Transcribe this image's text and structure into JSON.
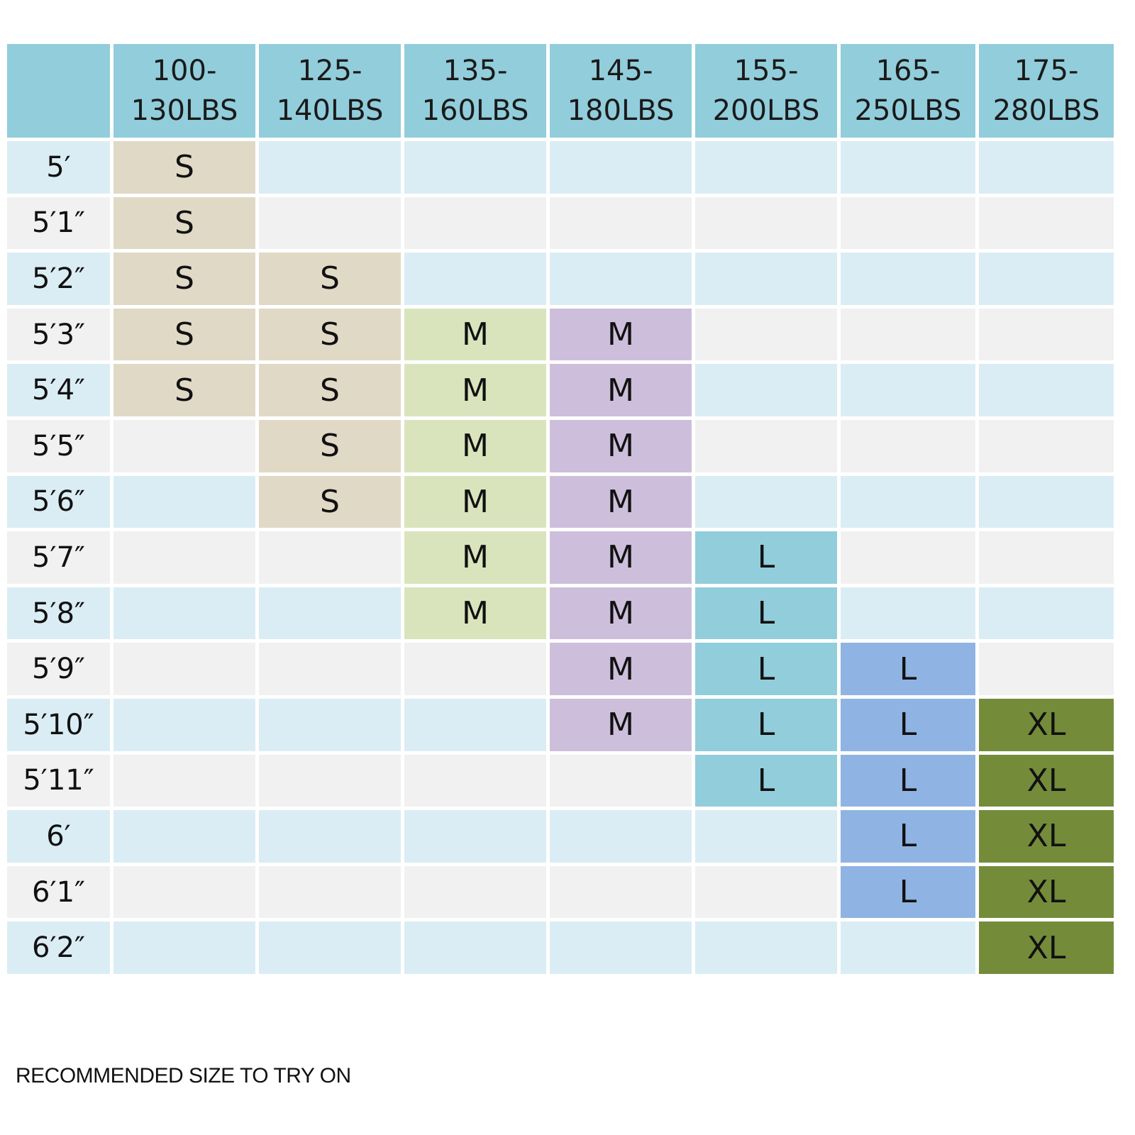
{
  "chart_data": {
    "type": "table",
    "columns": [
      "100-130LBS",
      "125-140LBS",
      "135-160LBS",
      "145-180LBS",
      "155-200LBS",
      "165-250LBS",
      "175-280LBS"
    ],
    "column_lines": [
      [
        "100-",
        "130LBS"
      ],
      [
        "125-",
        "140LBS"
      ],
      [
        "135-",
        "160LBS"
      ],
      [
        "145-",
        "180LBS"
      ],
      [
        "155-",
        "200LBS"
      ],
      [
        "165-",
        "250LBS"
      ],
      [
        "175-",
        "280LBS"
      ]
    ],
    "rows": [
      "5′",
      "5′1″",
      "5′2″",
      "5′3″",
      "5′4″",
      "5′5″",
      "5′6″",
      "5′7″",
      "5′8″",
      "5′9″",
      "5′10″",
      "5′11″",
      "6′",
      "6′1″",
      "6′2″"
    ],
    "cells": [
      [
        "S",
        "",
        "",
        "",
        "",
        "",
        ""
      ],
      [
        "S",
        "",
        "",
        "",
        "",
        "",
        ""
      ],
      [
        "S",
        "S",
        "",
        "",
        "",
        "",
        ""
      ],
      [
        "S",
        "S",
        "M",
        "M",
        "",
        "",
        ""
      ],
      [
        "S",
        "S",
        "M",
        "M",
        "",
        "",
        ""
      ],
      [
        "",
        "S",
        "M",
        "M",
        "",
        "",
        ""
      ],
      [
        "",
        "S",
        "M",
        "M",
        "",
        "",
        ""
      ],
      [
        "",
        "",
        "M",
        "M",
        "L",
        "",
        ""
      ],
      [
        "",
        "",
        "M",
        "M",
        "L",
        "",
        ""
      ],
      [
        "",
        "",
        "",
        "M",
        "L",
        "L",
        ""
      ],
      [
        "",
        "",
        "",
        "M",
        "L",
        "L",
        "XL"
      ],
      [
        "",
        "",
        "",
        "",
        "L",
        "L",
        "XL"
      ],
      [
        "",
        "",
        "",
        "",
        "",
        "L",
        "XL"
      ],
      [
        "",
        "",
        "",
        "",
        "",
        "L",
        "XL"
      ],
      [
        "",
        "",
        "",
        "",
        "",
        "",
        "XL"
      ]
    ],
    "colors": {
      "header": "#92cddb",
      "row_even": "#dbedf4",
      "row_odd": "#f1f1f1",
      "S": "#e0d9c6",
      "M_col3": "#d9e4bc",
      "M_col4": "#cdbfdb",
      "L_col5": "#92cddb",
      "L_col6": "#8fb4e3",
      "XL": "#748c3a"
    }
  },
  "footnote": "RECOMMENDED SIZE TO TRY ON"
}
